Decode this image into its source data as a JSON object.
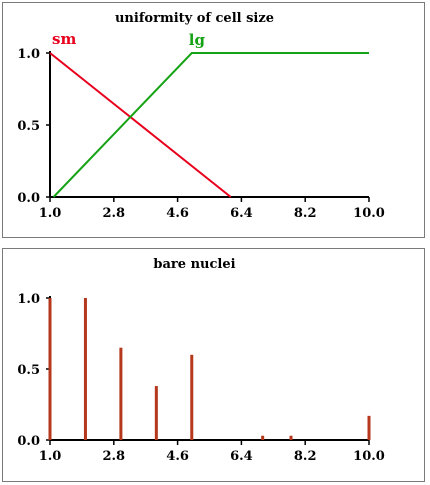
{
  "chart_data": [
    {
      "type": "line",
      "title": "uniformity of cell size",
      "xlabel": "",
      "ylabel": "",
      "xlim": [
        1.0,
        10.0
      ],
      "ylim": [
        0.0,
        1.0
      ],
      "x_ticks": [
        "1.0",
        "2.8",
        "4.6",
        "6.4",
        "8.2",
        "10.0"
      ],
      "y_ticks": [
        "0.0",
        "0.5",
        "1.0"
      ],
      "series": [
        {
          "name": "sm",
          "color": "#e8001c",
          "x": [
            1.0,
            6.1
          ],
          "y": [
            1.0,
            0.0
          ]
        },
        {
          "name": "lg",
          "color": "#15a315",
          "x": [
            1.1,
            5.0,
            10.0
          ],
          "y": [
            0.0,
            1.0,
            1.0
          ]
        }
      ]
    },
    {
      "type": "bar",
      "title": "bare nuclei",
      "xlabel": "",
      "ylabel": "",
      "xlim": [
        1.0,
        10.0
      ],
      "ylim": [
        0.0,
        1.0
      ],
      "x_ticks": [
        "1.0",
        "2.8",
        "4.6",
        "6.4",
        "8.2",
        "10.0"
      ],
      "y_ticks": [
        "0.0",
        "0.5",
        "1.0"
      ],
      "bar_color": "#b5371c",
      "x": [
        1.0,
        2.0,
        3.0,
        4.0,
        5.0,
        7.0,
        7.8,
        10.0
      ],
      "values": [
        1.0,
        1.0,
        0.65,
        0.38,
        0.6,
        0.03,
        0.03,
        0.17
      ]
    }
  ]
}
